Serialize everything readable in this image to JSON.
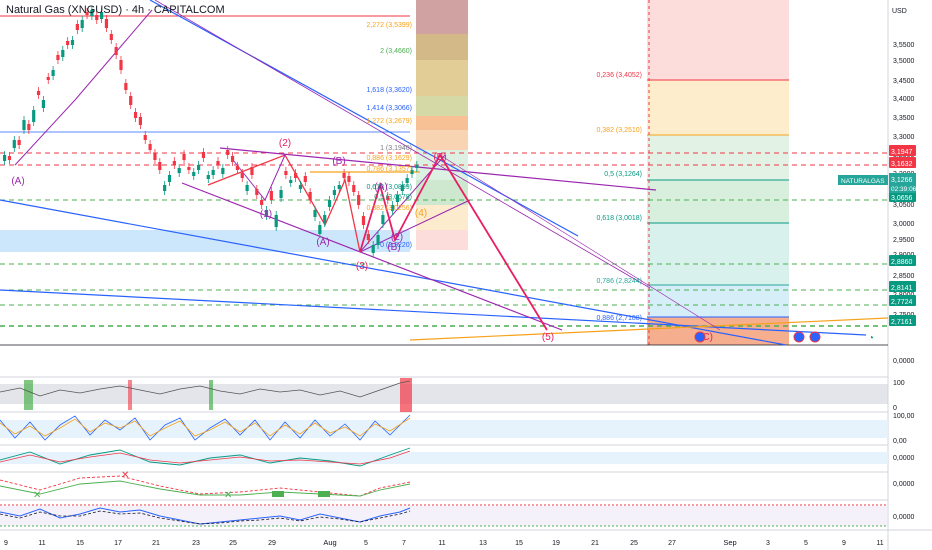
{
  "header": {
    "symbol_title": "Natural Gas (XNGUSD) · 4h · CAPITALCOM",
    "currency": "USD"
  },
  "price_axis": {
    "labels": [
      "3,5500",
      "3,5000",
      "3,4500",
      "3,4000",
      "3,3500",
      "3,3000",
      "3,2500",
      "3,2000",
      "3,0500",
      "3,0000",
      "2,9500",
      "2,9000",
      "2,8500",
      "2,8000",
      "2,7500",
      "0,0000"
    ],
    "badges": [
      {
        "text": "3,1947",
        "color": "#f23645"
      },
      {
        "text": "3,1632",
        "color": "#f23645"
      },
      {
        "text": "3,0656",
        "color": "#089981"
      },
      {
        "text": "2,8860",
        "color": "#089981"
      },
      {
        "text": "2,8141",
        "color": "#089981"
      },
      {
        "text": "2,7724",
        "color": "#089981"
      },
      {
        "text": "2,7161",
        "color": "#089981"
      }
    ],
    "current": {
      "text": "3,1266",
      "countdown": "02:39:06",
      "color": "#26a69a"
    },
    "symbol_tag": "NATURALGAS"
  },
  "indicator_axis": {
    "panel1": [
      "100",
      "0"
    ],
    "panel2": [
      "100,00",
      "0,00"
    ],
    "panel3": [
      "0,0000"
    ],
    "panel4": [
      "0,0000"
    ],
    "panel5": [
      "0,0000"
    ]
  },
  "time_axis": {
    "labels": [
      "9",
      "11",
      "15",
      "17",
      "21",
      "23",
      "25",
      "29",
      "Aug",
      "5",
      "7",
      "11",
      "13",
      "15",
      "19",
      "21",
      "25",
      "27",
      "Sep",
      "3",
      "5",
      "9",
      "11"
    ]
  },
  "fib_left": [
    {
      "text": "2,272 (3,5399)",
      "color": "#f7a21b"
    },
    {
      "text": "2 (3,4660)",
      "color": "#4caf50"
    },
    {
      "text": "1,618 (3,3620)",
      "color": "#2962ff"
    },
    {
      "text": "1,414 (3,3066)",
      "color": "#2962ff"
    },
    {
      "text": "1,272 (3,2679)",
      "color": "#f7a21b"
    },
    {
      "text": "1 (3,1940)",
      "color": "#787b86"
    },
    {
      "text": "0,886 (3,1629)",
      "color": "#f7a21b"
    },
    {
      "text": "0,786 (3,1357)",
      "color": "#f7a21b"
    },
    {
      "text": "0,618 (3,0899)",
      "color": "#089981"
    },
    {
      "text": "0,5 (3,0578)",
      "color": "#089981"
    },
    {
      "text": "0,382 (3,0256)",
      "color": "#f7a21b"
    },
    {
      "text": "0 (2,9220)",
      "color": "#2962ff"
    }
  ],
  "fib_right": [
    {
      "text": "0,236 (3,4052)",
      "color": "#f23645"
    },
    {
      "text": "0,382 (3,2510)",
      "color": "#f7a21b"
    },
    {
      "text": "0,5 (3,1264)",
      "color": "#089981"
    },
    {
      "text": "0,618 (3,0018)",
      "color": "#089981"
    },
    {
      "text": "0,786 (2,8244)",
      "color": "#26a69a"
    },
    {
      "text": "0,886 (2,7188)",
      "color": "#2962ff"
    }
  ],
  "wave_labels": [
    {
      "text": "(A)",
      "color": "#9c27b0"
    },
    {
      "text": "(2)",
      "color": "#e91e63"
    },
    {
      "text": "(1)",
      "color": "#9c27b0"
    },
    {
      "text": "(B)",
      "color": "#9c27b0"
    },
    {
      "text": "(A)",
      "color": "#9c27b0"
    },
    {
      "text": "(3)",
      "color": "#e91e63"
    },
    {
      "text": "(A)",
      "color": "#9c27b0"
    },
    {
      "text": "(B)",
      "color": "#9c27b0"
    },
    {
      "text": "(2)",
      "color": "#9c27b0"
    },
    {
      "text": "(4)",
      "color": "#f7a21b"
    },
    {
      "text": "(B)",
      "color": "#e91e63"
    },
    {
      "text": "(5)",
      "color": "#e91e63"
    },
    {
      "text": "(C)",
      "color": "#e91e63"
    }
  ]
}
